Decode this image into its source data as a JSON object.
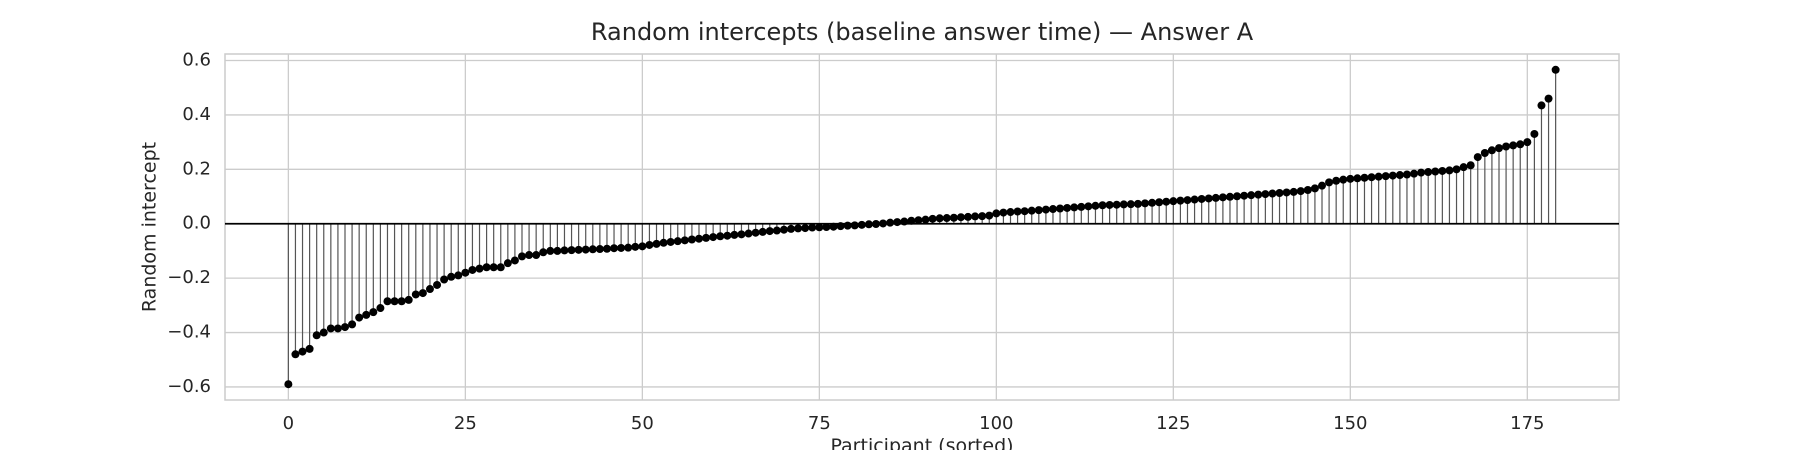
{
  "chart_data": {
    "type": "stem",
    "title": "Random intercepts (baseline answer time) — Answer A",
    "xlabel": "Participant (sorted)",
    "ylabel": "Random intercept",
    "grid": true,
    "color": "#000000",
    "stem_color": "#555555",
    "x": [
      0,
      1,
      2,
      3,
      4,
      5,
      6,
      7,
      8,
      9,
      10,
      11,
      12,
      13,
      14,
      15,
      16,
      17,
      18,
      19,
      20,
      21,
      22,
      23,
      24,
      25,
      26,
      27,
      28,
      29,
      30,
      31,
      32,
      33,
      34,
      35,
      36,
      37,
      38,
      39,
      40,
      41,
      42,
      43,
      44,
      45,
      46,
      47,
      48,
      49,
      50,
      51,
      52,
      53,
      54,
      55,
      56,
      57,
      58,
      59,
      60,
      61,
      62,
      63,
      64,
      65,
      66,
      67,
      68,
      69,
      70,
      71,
      72,
      73,
      74,
      75,
      76,
      77,
      78,
      79,
      80,
      81,
      82,
      83,
      84,
      85,
      86,
      87,
      88,
      89,
      90,
      91,
      92,
      93,
      94,
      95,
      96,
      97,
      98,
      99,
      100,
      101,
      102,
      103,
      104,
      105,
      106,
      107,
      108,
      109,
      110,
      111,
      112,
      113,
      114,
      115,
      116,
      117,
      118,
      119,
      120,
      121,
      122,
      123,
      124,
      125,
      126,
      127,
      128,
      129,
      130,
      131,
      132,
      133,
      134,
      135,
      136,
      137,
      138,
      139,
      140,
      141,
      142,
      143,
      144,
      145,
      146,
      147,
      148,
      149,
      150,
      151,
      152,
      153,
      154,
      155,
      156,
      157,
      158,
      159,
      160,
      161,
      162,
      163,
      164,
      165,
      166,
      167,
      168,
      169,
      170,
      171,
      172,
      173,
      174,
      175,
      176,
      177,
      178,
      179
    ],
    "values": [
      -0.59,
      -0.48,
      -0.47,
      -0.46,
      -0.41,
      -0.4,
      -0.385,
      -0.385,
      -0.38,
      -0.37,
      -0.345,
      -0.335,
      -0.325,
      -0.31,
      -0.285,
      -0.285,
      -0.285,
      -0.28,
      -0.26,
      -0.255,
      -0.24,
      -0.225,
      -0.205,
      -0.195,
      -0.19,
      -0.18,
      -0.17,
      -0.165,
      -0.16,
      -0.16,
      -0.16,
      -0.145,
      -0.135,
      -0.12,
      -0.115,
      -0.115,
      -0.105,
      -0.1,
      -0.1,
      -0.098,
      -0.097,
      -0.096,
      -0.095,
      -0.094,
      -0.093,
      -0.092,
      -0.09,
      -0.089,
      -0.088,
      -0.085,
      -0.083,
      -0.078,
      -0.074,
      -0.07,
      -0.067,
      -0.064,
      -0.061,
      -0.058,
      -0.055,
      -0.052,
      -0.049,
      -0.046,
      -0.044,
      -0.041,
      -0.039,
      -0.036,
      -0.033,
      -0.03,
      -0.027,
      -0.025,
      -0.022,
      -0.019,
      -0.017,
      -0.016,
      -0.014,
      -0.013,
      -0.012,
      -0.011,
      -0.009,
      -0.007,
      -0.006,
      -0.004,
      -0.002,
      -0.001,
      0.001,
      0.004,
      0.006,
      0.008,
      0.011,
      0.013,
      0.015,
      0.018,
      0.02,
      0.021,
      0.022,
      0.024,
      0.025,
      0.027,
      0.028,
      0.03,
      0.038,
      0.041,
      0.043,
      0.045,
      0.046,
      0.048,
      0.05,
      0.052,
      0.054,
      0.056,
      0.058,
      0.06,
      0.062,
      0.064,
      0.066,
      0.068,
      0.069,
      0.07,
      0.071,
      0.072,
      0.073,
      0.075,
      0.077,
      0.079,
      0.081,
      0.083,
      0.085,
      0.087,
      0.089,
      0.091,
      0.093,
      0.095,
      0.097,
      0.099,
      0.101,
      0.103,
      0.105,
      0.107,
      0.109,
      0.111,
      0.113,
      0.115,
      0.117,
      0.12,
      0.124,
      0.13,
      0.14,
      0.152,
      0.158,
      0.162,
      0.165,
      0.167,
      0.169,
      0.171,
      0.173,
      0.175,
      0.177,
      0.179,
      0.181,
      0.184,
      0.188,
      0.19,
      0.192,
      0.194,
      0.196,
      0.2,
      0.208,
      0.215,
      0.245,
      0.26,
      0.27,
      0.278,
      0.284,
      0.288,
      0.292,
      0.3,
      0.33,
      0.435,
      0.46,
      0.566
    ],
    "xlim": [
      -8.95,
      187.95
    ],
    "ylim": [
      -0.648,
      0.624
    ],
    "xticks": [
      0,
      25,
      50,
      75,
      100,
      125,
      150,
      175
    ],
    "yticks": [
      {
        "value": -0.6,
        "label": "−0.6"
      },
      {
        "value": -0.4,
        "label": "−0.4"
      },
      {
        "value": -0.2,
        "label": "−0.2"
      },
      {
        "value": 0,
        "label": "0.0"
      },
      {
        "value": 0.2,
        "label": "0.2"
      },
      {
        "value": 0.4,
        "label": "0.4"
      },
      {
        "value": 0.6,
        "label": "0.6"
      }
    ]
  }
}
